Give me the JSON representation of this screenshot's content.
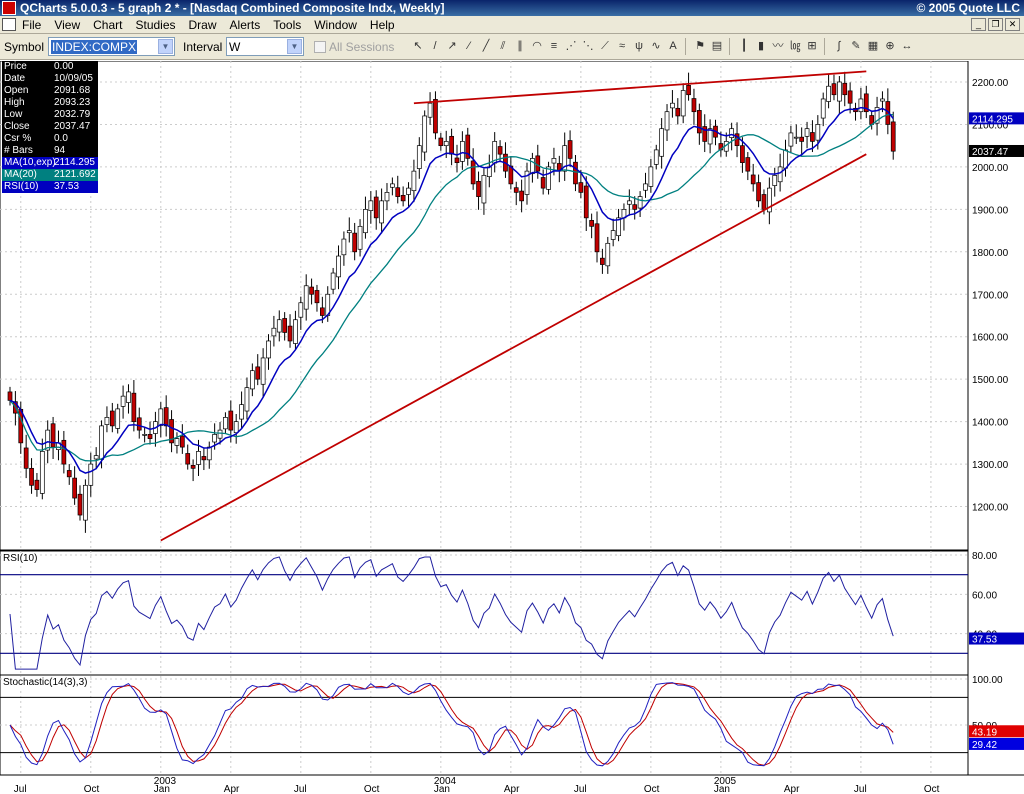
{
  "window": {
    "title": "QCharts 5.0.0.3 - 5 graph 2 * - [Nasdaq Combined Composite Indx, Weekly]",
    "copyright": "© 2005 Quote LLC"
  },
  "menu": [
    "File",
    "View",
    "Chart",
    "Studies",
    "Draw",
    "Alerts",
    "Tools",
    "Window",
    "Help"
  ],
  "toolbar": {
    "symbol_label": "Symbol",
    "symbol_value": "INDEX:COMPX",
    "interval_label": "Interval",
    "interval_value": "W",
    "all_sessions_label": "All Sessions",
    "tool_icons": [
      "pointer-icon",
      "line-icon",
      "ray-icon",
      "extended-line-icon",
      "trendline-icon",
      "channel-icon",
      "parallel-icon",
      "fibonacci-arcs-icon",
      "fibonacci-retracement-icon",
      "fibonacci-fan-icon",
      "gann-fan-icon",
      "speed-lines-icon",
      "regression-icon",
      "andrews-pitchfork-icon",
      "cycle-icon",
      "text-icon",
      "alert-icon",
      "properties-icon",
      "bar-icon",
      "candle-icon",
      "line-chart-icon",
      "log-scale-icon",
      "split-icon",
      "indicator-icon",
      "draw-icon",
      "layout-icon",
      "zoom-icon",
      "scroll-icon"
    ]
  },
  "info_box": {
    "price": {
      "label": "Price",
      "value": "0.00"
    },
    "date": {
      "label": "Date",
      "value": "10/09/05"
    },
    "open": {
      "label": "Open",
      "value": "2091.68"
    },
    "high": {
      "label": "High",
      "value": "2093.23"
    },
    "low": {
      "label": "Low",
      "value": "2032.79"
    },
    "close": {
      "label": "Close",
      "value": "2037.47"
    },
    "csr": {
      "label": "Csr %",
      "value": "0.0"
    },
    "bars": {
      "label": "# Bars",
      "value": "94"
    },
    "ma10": {
      "label": "MA(10,exp)",
      "value": "2114.295"
    },
    "ma20": {
      "label": "MA(20)",
      "value": "2121.692"
    },
    "rsi": {
      "label": "RSI(10)",
      "value": "37.53"
    }
  },
  "colors": {
    "up_candle": "#ffffff",
    "down_candle": "#c00000",
    "ma10": "#0000c0",
    "ma20": "#008080",
    "trendline": "#c00000",
    "rsi_line": "#2020a0",
    "stoch_k": "#2020c0",
    "stoch_d": "#c00000"
  },
  "chart_data": [
    {
      "type": "candlestick",
      "name": "price",
      "ylim": [
        1100,
        2240
      ],
      "yticks": [
        1200,
        1300,
        1400,
        1500,
        1600,
        1700,
        1800,
        1900,
        2000,
        2100,
        2200
      ],
      "ytick_labels": [
        "1200.00",
        "1300.00",
        "1400.00",
        "1500.00",
        "1600.00",
        "1700.00",
        "1800.00",
        "1900.00",
        "2000.00",
        "2100.00",
        "2200.00"
      ],
      "last_labels": [
        {
          "text": "2114.295",
          "value": 2114.295,
          "color": "#0000c0"
        },
        {
          "text": "2037.47",
          "value": 2037.47,
          "color": "#000000"
        }
      ],
      "close": [
        1450,
        1420,
        1350,
        1290,
        1250,
        1240,
        1330,
        1380,
        1340,
        1350,
        1300,
        1270,
        1220,
        1180,
        1250,
        1300,
        1320,
        1390,
        1410,
        1390,
        1430,
        1460,
        1470,
        1400,
        1380,
        1370,
        1360,
        1400,
        1430,
        1390,
        1350,
        1360,
        1340,
        1300,
        1290,
        1330,
        1310,
        1340,
        1370,
        1380,
        1410,
        1380,
        1400,
        1440,
        1480,
        1520,
        1500,
        1550,
        1590,
        1620,
        1640,
        1610,
        1590,
        1640,
        1680,
        1720,
        1700,
        1680,
        1650,
        1700,
        1750,
        1790,
        1830,
        1850,
        1800,
        1860,
        1900,
        1920,
        1880,
        1920,
        1940,
        1960,
        1930,
        1920,
        1950,
        1990,
        2050,
        2120,
        2150,
        2080,
        2050,
        2060,
        2030,
        2010,
        2060,
        2020,
        1960,
        1930,
        1980,
        2000,
        2060,
        2030,
        1990,
        1960,
        1940,
        1920,
        1990,
        2020,
        1990,
        1950,
        2000,
        2020,
        1990,
        2050,
        2020,
        1960,
        1940,
        1880,
        1860,
        1800,
        1770,
        1820,
        1850,
        1880,
        1900,
        1920,
        1900,
        1930,
        1960,
        2000,
        2040,
        2090,
        2130,
        2150,
        2120,
        2180,
        2170,
        2130,
        2080,
        2060,
        2090,
        2070,
        2040,
        2060,
        2090,
        2050,
        2010,
        1990,
        1960,
        1920,
        1900,
        1950,
        1980,
        2000,
        2040,
        2080,
        2070,
        2060,
        2090,
        2060,
        2100,
        2160,
        2190,
        2170,
        2200,
        2170,
        2150,
        2130,
        2160,
        2130,
        2100,
        2140,
        2160,
        2100,
        2037
      ],
      "ma10_last": 2114.295,
      "ma20_last": 2121.692,
      "trendlines": [
        {
          "from": {
            "bar": 28,
            "value": 1120
          },
          "to": {
            "bar": 159,
            "value": 2030
          }
        },
        {
          "from": {
            "bar": 75,
            "value": 2150
          },
          "to": {
            "bar": 159,
            "value": 2225
          }
        }
      ]
    },
    {
      "type": "line",
      "name": "RSI(10)",
      "ylim": [
        20,
        80
      ],
      "yticks": [
        40,
        60,
        80
      ],
      "ytick_labels": [
        "40.00",
        "60.00",
        "80.00"
      ],
      "hlines": [
        70,
        30
      ],
      "last_label": "37.53",
      "last_value": 37.53
    },
    {
      "type": "line",
      "name": "Stochastic(14(3),3)",
      "ylim": [
        0,
        100
      ],
      "yticks": [
        50,
        100
      ],
      "ytick_labels": [
        "50.00",
        "100.00"
      ],
      "hlines": [
        80,
        20
      ],
      "last_labels": [
        {
          "text": "43.19",
          "value": 43.19,
          "color": "#e00000"
        },
        {
          "text": "29.42",
          "value": 29.42,
          "color": "#0000e0"
        }
      ]
    }
  ],
  "x_axis": {
    "labels": [
      {
        "text": "Jul",
        "bar": 2
      },
      {
        "text": "Oct",
        "bar": 15
      },
      {
        "text": "2003",
        "bar": 28
      },
      {
        "text": "Jan",
        "bar": 28
      },
      {
        "text": "Apr",
        "bar": 41
      },
      {
        "text": "Jul",
        "bar": 54
      },
      {
        "text": "Oct",
        "bar": 67
      },
      {
        "text": "2004",
        "bar": 80
      },
      {
        "text": "Jan",
        "bar": 80
      },
      {
        "text": "Apr",
        "bar": 93
      },
      {
        "text": "Jul",
        "bar": 106
      },
      {
        "text": "Oct",
        "bar": 119
      },
      {
        "text": "2005",
        "bar": 132
      },
      {
        "text": "Jan",
        "bar": 132
      },
      {
        "text": "Apr",
        "bar": 145
      },
      {
        "text": "Jul",
        "bar": 158
      },
      {
        "text": "Oct",
        "bar": 171
      }
    ]
  },
  "pane_labels": {
    "rsi": "RSI(10)",
    "stoch": "Stochastic(14(3),3)"
  }
}
